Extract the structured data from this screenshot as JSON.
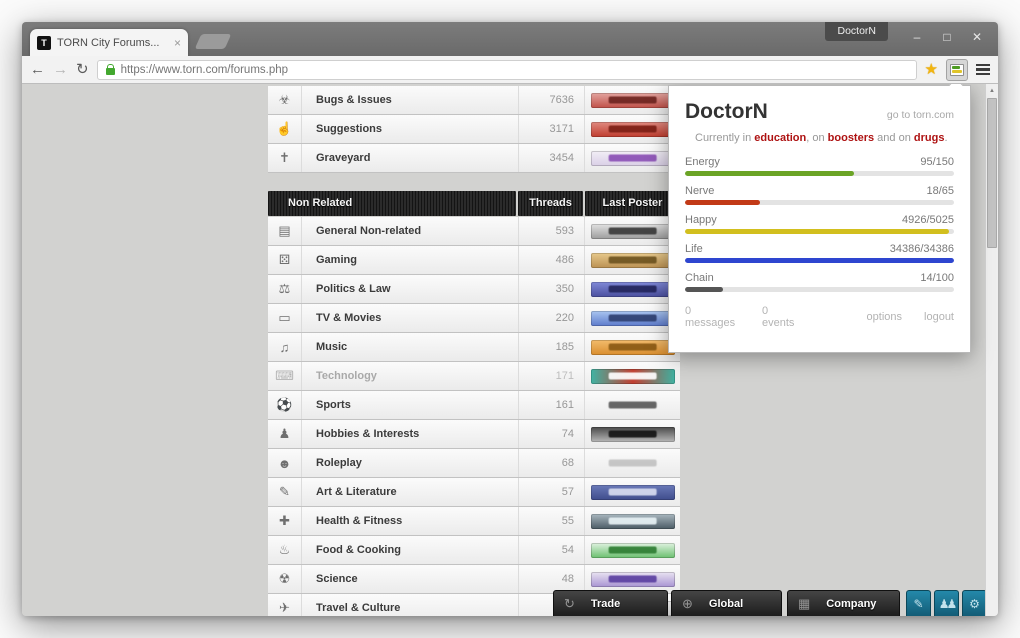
{
  "window": {
    "profile_badge": "DoctorN",
    "minimize": "–",
    "maximize": "□",
    "close": "✕"
  },
  "browser": {
    "tab_title": "TORN City Forums...",
    "tab_close": "×",
    "favicon_letter": "T",
    "url": "https://www.torn.com/forums.php",
    "back_icon": "←",
    "forward_icon": "→",
    "reload_icon": "↻",
    "star_icon": "★",
    "scroll_up_icon": "▲",
    "corner_arrow": "▾"
  },
  "popup": {
    "title": "DoctorN",
    "link": "go to torn.com",
    "status": {
      "prefix": "Currently in ",
      "hl1": "education",
      "mid1": ", on ",
      "hl2": "boosters",
      "mid2": " and on ",
      "hl3": "drugs",
      "suffix": "."
    },
    "bars": [
      {
        "label": "Energy",
        "value": "95/150",
        "pct": 63,
        "color": "#6ba426"
      },
      {
        "label": "Nerve",
        "value": "18/65",
        "pct": 28,
        "color": "#c23a17"
      },
      {
        "label": "Happy",
        "value": "4926/5025",
        "pct": 98,
        "color": "#d2bf1e"
      },
      {
        "label": "Life",
        "value": "34386/34386",
        "pct": 100,
        "color": "#2e46d0"
      },
      {
        "label": "Chain",
        "value": "14/100",
        "pct": 14,
        "color": "#555555"
      }
    ],
    "footer": {
      "messages": "0 messages",
      "events": "0 events",
      "options": "options",
      "logout": "logout"
    }
  },
  "forum": {
    "header": {
      "section": "Non Related",
      "threads": "Threads",
      "last_poster": "Last Poster"
    },
    "top_rows": [
      {
        "name": "Bugs & Issues",
        "threads": "7636",
        "icon": "bug-icon",
        "glyph": "☣",
        "sig": {
          "badge": true,
          "colors": [
            "#e3a5a0",
            "#c05048"
          ],
          "ink": "#6e2420"
        }
      },
      {
        "name": "Suggestions",
        "threads": "3171",
        "icon": "suggestion-icon",
        "glyph": "☝",
        "sig": {
          "badge": true,
          "colors": [
            "#e08a80",
            "#bf3c2e"
          ],
          "ink": "#7d1f15"
        }
      },
      {
        "name": "Graveyard",
        "threads": "3454",
        "icon": "tombstone-icon",
        "glyph": "✝",
        "sig": {
          "badge": true,
          "colors": [
            "#f2eef6",
            "#d9cfe6"
          ],
          "ink": "#8a4fb5"
        }
      }
    ],
    "rows": [
      {
        "name": "General Non-related",
        "threads": "593",
        "icon": "briefcase-icon",
        "glyph": "▤",
        "sig": {
          "badge": true,
          "colors": [
            "#e2e2e2",
            "#9c9c9c"
          ],
          "ink": "#3a3a3a"
        }
      },
      {
        "name": "Gaming",
        "threads": "486",
        "icon": "gamepad-icon",
        "glyph": "⚄",
        "sig": {
          "badge": true,
          "colors": [
            "#e7c98c",
            "#bb9152"
          ],
          "ink": "#6e5420"
        }
      },
      {
        "name": "Politics & Law",
        "threads": "350",
        "icon": "gavel-icon",
        "glyph": "⚖",
        "sig": {
          "badge": true,
          "colors": [
            "#8089d8",
            "#4a4f9e"
          ],
          "ink": "#23255c"
        }
      },
      {
        "name": "TV & Movies",
        "threads": "220",
        "icon": "tv-icon",
        "glyph": "▭",
        "sig": {
          "badge": true,
          "colors": [
            "#aac6f0",
            "#5c7acb"
          ],
          "ink": "#2e3f70"
        }
      },
      {
        "name": "Music",
        "threads": "185",
        "icon": "music-note-icon",
        "glyph": "♫",
        "sig": {
          "badge": true,
          "colors": [
            "#f2bc6d",
            "#d98d2e"
          ],
          "ink": "#8a5a14"
        }
      },
      {
        "name": "Technology",
        "threads": "171",
        "icon": "keyboard-icon",
        "glyph": "⌨",
        "dim": true,
        "sig": {
          "badge": true,
          "colors": [
            "#3fb3a3",
            "#c23f31",
            "#3fb3a3"
          ],
          "ink": "#ffffff"
        }
      },
      {
        "name": "Sports",
        "threads": "161",
        "icon": "sports-icon",
        "glyph": "⚽",
        "sig": {
          "badge": false,
          "ink": "#5a5a5a"
        }
      },
      {
        "name": "Hobbies & Interests",
        "threads": "74",
        "icon": "chess-pawn-icon",
        "glyph": "♟",
        "sig": {
          "badge": true,
          "colors": [
            "#4a4a4a",
            "#b8b8b8"
          ],
          "ink": "#141414"
        }
      },
      {
        "name": "Roleplay",
        "threads": "68",
        "icon": "mask-icon",
        "glyph": "☻",
        "sig": {
          "badge": false,
          "ink": "#c2c2c2"
        }
      },
      {
        "name": "Art & Literature",
        "threads": "57",
        "icon": "pencil-art-icon",
        "glyph": "✎",
        "sig": {
          "badge": true,
          "colors": [
            "#6a79b8",
            "#3f4c8c"
          ],
          "ink": "#d8ddf0"
        }
      },
      {
        "name": "Health & Fitness",
        "threads": "55",
        "icon": "health-cross-icon",
        "glyph": "✚",
        "sig": {
          "badge": true,
          "colors": [
            "#aab8c0",
            "#4a5a64"
          ],
          "ink": "#e8f2f6"
        }
      },
      {
        "name": "Food & Cooking",
        "threads": "54",
        "icon": "food-icon",
        "glyph": "♨",
        "sig": {
          "badge": true,
          "colors": [
            "#dff2e0",
            "#6abf6e"
          ],
          "ink": "#2e7d32"
        }
      },
      {
        "name": "Science",
        "threads": "48",
        "icon": "flask-icon",
        "glyph": "☢",
        "sig": {
          "badge": true,
          "colors": [
            "#eae4f2",
            "#a894d2"
          ],
          "ink": "#5b3fa0"
        }
      },
      {
        "name": "Travel & Culture",
        "threads": "",
        "icon": "travel-icon",
        "glyph": "✈",
        "sig": {
          "badge": true,
          "colors": [
            "#e0e0e0",
            "#c2c2c2"
          ],
          "ink": "#8a8a8a"
        }
      }
    ]
  },
  "bottombar": {
    "trade": "Trade",
    "global": "Global",
    "company": "Company",
    "trade_icon": "↻",
    "global_icon": "⊕",
    "company_icon": "▦",
    "pencil_icon": "✎",
    "people_icon": "♟♟",
    "gear_icon": "⚙"
  }
}
